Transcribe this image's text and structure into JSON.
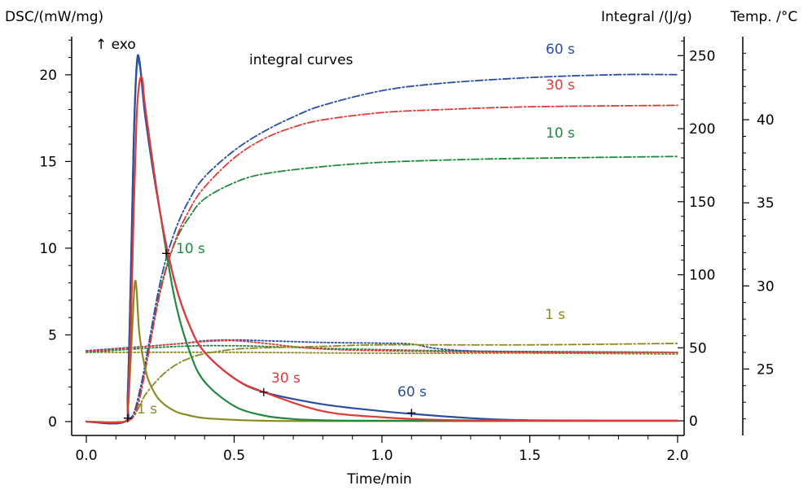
{
  "chart_data": {
    "type": "line",
    "annotation_exo": "↑ exo",
    "annotation_integral": "integral curves",
    "xlabel": "Time/min",
    "ylabel_left": "DSC/(mW/mg)",
    "ylabel_integral": "Integral /(J/g)",
    "ylabel_temp": "Temp. /°C",
    "xlim": [
      0,
      2.0
    ],
    "ylim_dsc": [
      -0.8,
      22.2
    ],
    "ylim_integral": [
      -10,
      263
    ],
    "ylim_temp": [
      21,
      45
    ],
    "x_ticks": [
      "0.0",
      "0.5",
      "1.0",
      "1.5",
      "2.0"
    ],
    "dsc_ticks": [
      "0",
      "5",
      "10",
      "15",
      "20"
    ],
    "integral_ticks": [
      "0",
      "50",
      "100",
      "150",
      "200",
      "250"
    ],
    "temp_ticks": [
      "25",
      "30",
      "35",
      "40"
    ],
    "colors": {
      "s60": "#2b4ea2",
      "s30": "#e03a3a",
      "s10": "#1f8a3e",
      "s1": "#8a8a22"
    },
    "series": [
      {
        "name": "60 s",
        "kind": "dsc",
        "color": "s60",
        "x": [
          0.0,
          0.13,
          0.14,
          0.15,
          0.16,
          0.17,
          0.18,
          0.2,
          0.25,
          0.3,
          0.35,
          0.4,
          0.5,
          0.6,
          0.8,
          1.0,
          1.1,
          1.3,
          1.5,
          2.0
        ],
        "y": [
          0.0,
          0.0,
          1.5,
          8.0,
          16.0,
          20.5,
          20.8,
          17.5,
          12.0,
          8.0,
          5.5,
          4.0,
          2.5,
          1.7,
          1.0,
          0.6,
          0.45,
          0.2,
          0.08,
          0.05
        ]
      },
      {
        "name": "30 s",
        "kind": "dsc",
        "color": "s30",
        "x": [
          0.0,
          0.13,
          0.14,
          0.15,
          0.16,
          0.17,
          0.18,
          0.19,
          0.2,
          0.25,
          0.3,
          0.35,
          0.4,
          0.5,
          0.6,
          0.8,
          1.0,
          1.2,
          1.5,
          2.0
        ],
        "y": [
          0.0,
          0.0,
          0.8,
          5.0,
          12.0,
          17.5,
          19.6,
          19.7,
          18.0,
          12.0,
          8.0,
          5.5,
          4.0,
          2.5,
          1.7,
          0.6,
          0.25,
          0.1,
          0.06,
          0.05
        ]
      },
      {
        "name": "10 s",
        "kind": "dsc",
        "color": "s10",
        "x": [
          0.0,
          0.13,
          0.14,
          0.15,
          0.16,
          0.17,
          0.18,
          0.2,
          0.25,
          0.3,
          0.35,
          0.4,
          0.5,
          0.6,
          0.7,
          0.8,
          1.0,
          2.0
        ],
        "y": [
          0.0,
          0.0,
          1.5,
          8.0,
          16.0,
          20.3,
          20.6,
          18.0,
          12.0,
          7.0,
          4.0,
          2.3,
          0.9,
          0.35,
          0.15,
          0.08,
          0.05,
          0.05
        ]
      },
      {
        "name": "1 s",
        "kind": "dsc",
        "color": "s1",
        "x": [
          0.0,
          0.13,
          0.14,
          0.15,
          0.16,
          0.165,
          0.17,
          0.18,
          0.2,
          0.22,
          0.25,
          0.3,
          0.35,
          0.4,
          0.5,
          0.6,
          0.8,
          2.0
        ],
        "y": [
          0.0,
          0.0,
          0.5,
          3.5,
          7.0,
          8.1,
          7.6,
          5.0,
          3.0,
          2.0,
          1.2,
          0.6,
          0.35,
          0.2,
          0.1,
          0.05,
          0.03,
          0.03
        ]
      },
      {
        "name": "60 s",
        "kind": "integral",
        "color": "s60",
        "x": [
          0.14,
          0.16,
          0.18,
          0.2,
          0.25,
          0.3,
          0.35,
          0.4,
          0.5,
          0.6,
          0.7,
          0.8,
          1.0,
          1.2,
          1.5,
          1.8,
          2.0
        ],
        "y": [
          0,
          5,
          20,
          40,
          95,
          130,
          152,
          167,
          185,
          198,
          208,
          216,
          226,
          231,
          235,
          237,
          237
        ]
      },
      {
        "name": "30 s",
        "kind": "integral",
        "color": "s30",
        "x": [
          0.14,
          0.16,
          0.18,
          0.2,
          0.25,
          0.3,
          0.35,
          0.4,
          0.5,
          0.6,
          0.7,
          0.8,
          1.0,
          1.2,
          1.5,
          2.0
        ],
        "y": [
          0,
          3,
          15,
          35,
          88,
          123,
          145,
          160,
          180,
          193,
          201,
          206,
          211,
          213,
          215,
          216
        ]
      },
      {
        "name": "10 s",
        "kind": "integral",
        "color": "s10",
        "x": [
          0.14,
          0.16,
          0.18,
          0.2,
          0.25,
          0.3,
          0.35,
          0.4,
          0.5,
          0.6,
          0.8,
          1.0,
          1.3,
          1.6,
          2.0
        ],
        "y": [
          0,
          5,
          18,
          38,
          90,
          122,
          140,
          152,
          163,
          169,
          174,
          177,
          179,
          180,
          181
        ]
      },
      {
        "name": "1 s",
        "kind": "integral",
        "color": "s1",
        "x": [
          0.14,
          0.16,
          0.18,
          0.2,
          0.25,
          0.3,
          0.35,
          0.4,
          0.5,
          0.6,
          0.8,
          1.0,
          1.5,
          2.0
        ],
        "y": [
          0,
          3,
          10,
          18,
          30,
          38,
          43,
          46,
          49,
          50,
          51,
          52,
          52,
          53
        ]
      },
      {
        "name": "60 s",
        "kind": "temp",
        "color": "s60",
        "x": [
          0.0,
          0.3,
          0.4,
          0.5,
          0.6,
          0.8,
          1.0,
          1.1,
          1.2,
          1.4,
          2.0
        ],
        "y": [
          26.1,
          26.5,
          26.7,
          26.75,
          26.7,
          26.6,
          26.55,
          26.5,
          26.2,
          26.05,
          26.0
        ]
      },
      {
        "name": "30 s",
        "kind": "temp",
        "color": "s30",
        "x": [
          0.0,
          0.3,
          0.4,
          0.5,
          0.6,
          0.7,
          0.8,
          1.0,
          1.5,
          2.0
        ],
        "y": [
          26.05,
          26.5,
          26.65,
          26.7,
          26.55,
          26.35,
          26.2,
          26.1,
          26.0,
          26.0
        ]
      },
      {
        "name": "10 s",
        "kind": "temp",
        "color": "s10",
        "x": [
          0.0,
          0.3,
          0.5,
          0.7,
          0.9,
          1.2,
          1.5,
          2.0
        ],
        "y": [
          26.0,
          26.35,
          26.4,
          26.3,
          26.2,
          26.1,
          26.05,
          26.0
        ]
      },
      {
        "name": "1 s",
        "kind": "temp",
        "color": "s1",
        "x": [
          0.0,
          0.5,
          1.0,
          1.5,
          2.0
        ],
        "y": [
          26.0,
          26.0,
          25.95,
          25.95,
          25.9
        ]
      }
    ],
    "curve_labels": [
      {
        "text": "60 s",
        "color": "s60"
      },
      {
        "text": "30 s",
        "color": "s30"
      },
      {
        "text": "10 s",
        "color": "s10"
      },
      {
        "text": "1 s",
        "color": "s1"
      },
      {
        "text": "10 s",
        "color": "s10"
      },
      {
        "text": "30 s",
        "color": "s30"
      },
      {
        "text": "60 s",
        "color": "s60"
      },
      {
        "text": "1 s",
        "color": "s1"
      }
    ],
    "markers": [
      {
        "series": "1 s",
        "x": 0.14,
        "y": 0.2
      },
      {
        "series": "10 s",
        "x": 0.27,
        "y": 9.7
      },
      {
        "series": "30 s",
        "x": 0.6,
        "y": 1.7
      },
      {
        "series": "60 s",
        "x": 1.1,
        "y": 0.5
      }
    ]
  }
}
